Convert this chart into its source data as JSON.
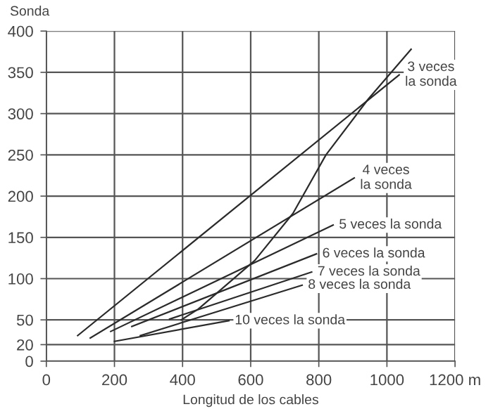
{
  "chart_data": {
    "type": "line",
    "xlabel": "Longitud de los cables",
    "ylabel": "Sonda",
    "xlim": [
      0,
      1200
    ],
    "ylim": [
      0,
      400
    ],
    "xticks": [
      0,
      200,
      400,
      600,
      800,
      1000,
      {
        "value": 1200,
        "label": "1200 m"
      }
    ],
    "yticks": [
      0,
      20,
      50,
      100,
      150,
      200,
      250,
      300,
      350,
      400
    ],
    "grid": true,
    "legend": false,
    "marker": "none",
    "line_style": "solid",
    "series": [
      {
        "name": "3 veces\nla sonda",
        "color": "#2a2a2a",
        "x": [
          92,
          1036
        ],
        "values": [
          31,
          347
        ]
      },
      {
        "name": "4 veces\nla sonda",
        "color": "#2a2a2a",
        "x": [
          129,
          904
        ],
        "values": [
          28,
          222
        ]
      },
      {
        "name": "5 veces la sonda",
        "color": "#2a2a2a",
        "x": [
          189,
          842
        ],
        "values": [
          36,
          165
        ]
      },
      {
        "name": "6 veces la sonda",
        "color": "#2a2a2a",
        "x": [
          251,
          793
        ],
        "values": [
          42,
          130
        ]
      },
      {
        "name": "7 veces la sonda",
        "color": "#2a2a2a",
        "x": [
          362,
          779
        ],
        "values": [
          51,
          108
        ]
      },
      {
        "name": "8 veces la sonda",
        "color": "#2a2a2a",
        "x": [
          276,
          751
        ],
        "values": [
          31,
          92
        ]
      },
      {
        "name": "10 veces la sonda",
        "color": "#2a2a2a",
        "x": [
          200,
          536
        ],
        "values": [
          24,
          49
        ]
      },
      {
        "color": "#2a2a2a",
        "x": [
          396,
          446,
          612,
          724,
          821,
          946,
          1071
        ],
        "values": [
          50,
          63,
          122,
          179,
          250,
          318,
          378
        ]
      }
    ]
  }
}
